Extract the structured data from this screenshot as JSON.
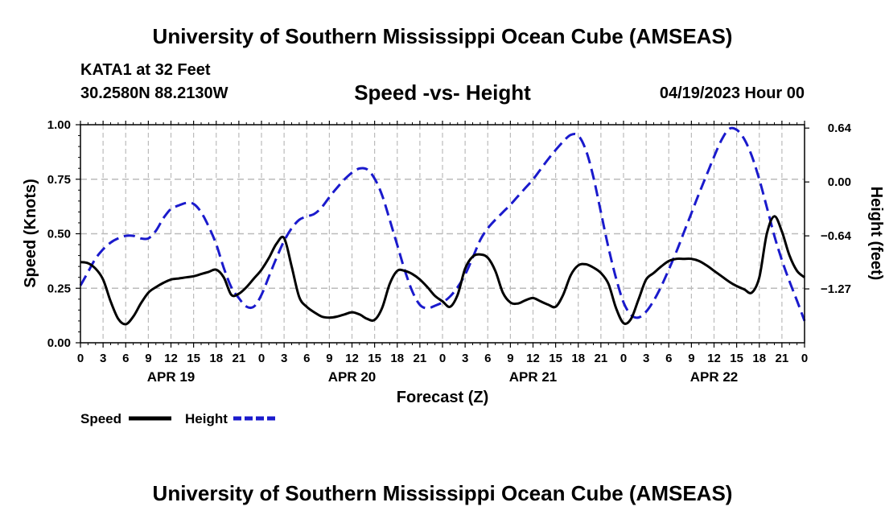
{
  "header": {
    "title": "University of Southern Mississippi Ocean Cube (AMSEAS)",
    "station": "KATA1 at 32 Feet",
    "coords": "30.2580N  88.2130W",
    "subtitle": "Speed -vs- Height",
    "datetime": "04/19/2023 Hour 00"
  },
  "footer": {
    "title": "University of Southern Mississippi Ocean Cube (AMSEAS)"
  },
  "chart_data": {
    "type": "line",
    "title": "Speed -vs- Height",
    "xlabel": "Forecast (Z)",
    "ylabel": "Speed (Knots)",
    "y2label": "Height (feet)",
    "grid": true,
    "xlim": [
      0,
      96
    ],
    "ylim": [
      0,
      1.0
    ],
    "y2lim": [
      -1.91,
      0.68
    ],
    "x_tick_hours": [
      0,
      3,
      6,
      9,
      12,
      15,
      18,
      21,
      24,
      27,
      30,
      33,
      36,
      39,
      42,
      45,
      48,
      51,
      54,
      57,
      60,
      63,
      66,
      69,
      72,
      75,
      78,
      81,
      84,
      87,
      90,
      93,
      96
    ],
    "x_tick_labels": [
      "0",
      "3",
      "6",
      "9",
      "12",
      "15",
      "18",
      "21",
      "0",
      "3",
      "6",
      "9",
      "12",
      "15",
      "18",
      "21",
      "0",
      "3",
      "6",
      "9",
      "12",
      "15",
      "18",
      "21",
      "0",
      "3",
      "6",
      "9",
      "12",
      "15",
      "18",
      "21",
      "0"
    ],
    "day_labels": [
      {
        "hour": 12,
        "label": "APR 19"
      },
      {
        "hour": 36,
        "label": "APR 20"
      },
      {
        "hour": 60,
        "label": "APR 21"
      },
      {
        "hour": 84,
        "label": "APR 22"
      }
    ],
    "y_ticks": [
      0.0,
      0.25,
      0.5,
      0.75,
      1.0
    ],
    "y_tick_labels": [
      "0.00",
      "0.25",
      "0.50",
      "0.75",
      "1.00"
    ],
    "y2_ticks": [
      0.64,
      0.0,
      -0.64,
      -1.27
    ],
    "y2_tick_labels": [
      "0.64",
      "0.00",
      "−0.64",
      "−1.27"
    ],
    "legend": [
      {
        "name": "Speed",
        "color": "#000000",
        "dash": "solid"
      },
      {
        "name": "Height",
        "color": "#1a1acc",
        "dash": "dashed"
      }
    ],
    "series": [
      {
        "name": "Speed",
        "axis": "left",
        "color": "#000000",
        "x": [
          0,
          1,
          2,
          3,
          4,
          5,
          6,
          7,
          8,
          9,
          10,
          11,
          12,
          13,
          14,
          15,
          16,
          17,
          18,
          19,
          20,
          21,
          22,
          23,
          24,
          25,
          26,
          27,
          28,
          29,
          30,
          31,
          32,
          33,
          34,
          35,
          36,
          37,
          38,
          39,
          40,
          41,
          42,
          43,
          44,
          45,
          46,
          47,
          48,
          49,
          50,
          51,
          52,
          53,
          54,
          55,
          56,
          57,
          58,
          59,
          60,
          61,
          62,
          63,
          64,
          65,
          66,
          67,
          68,
          69,
          70,
          71,
          72,
          73,
          74,
          75,
          76,
          77,
          78,
          79,
          80,
          81,
          82,
          83,
          84,
          85,
          86,
          87,
          88,
          89,
          90,
          91,
          92,
          93,
          94,
          95,
          96
        ],
        "values": [
          0.37,
          0.365,
          0.34,
          0.29,
          0.19,
          0.11,
          0.085,
          0.12,
          0.18,
          0.23,
          0.255,
          0.275,
          0.29,
          0.295,
          0.3,
          0.305,
          0.315,
          0.325,
          0.335,
          0.3,
          0.22,
          0.225,
          0.255,
          0.295,
          0.335,
          0.39,
          0.455,
          0.48,
          0.35,
          0.21,
          0.165,
          0.14,
          0.12,
          0.115,
          0.12,
          0.13,
          0.14,
          0.13,
          0.11,
          0.105,
          0.16,
          0.27,
          0.33,
          0.33,
          0.315,
          0.29,
          0.255,
          0.215,
          0.19,
          0.165,
          0.22,
          0.34,
          0.395,
          0.405,
          0.39,
          0.33,
          0.23,
          0.185,
          0.18,
          0.195,
          0.205,
          0.19,
          0.175,
          0.165,
          0.22,
          0.31,
          0.355,
          0.36,
          0.345,
          0.32,
          0.27,
          0.16,
          0.09,
          0.11,
          0.2,
          0.29,
          0.32,
          0.35,
          0.375,
          0.385,
          0.385,
          0.385,
          0.375,
          0.355,
          0.33,
          0.305,
          0.28,
          0.26,
          0.245,
          0.23,
          0.3,
          0.5,
          0.58,
          0.51,
          0.4,
          0.33,
          0.3
        ]
      },
      {
        "name": "Height",
        "axis": "right",
        "color": "#1a1acc",
        "x": [
          0,
          1,
          2,
          3,
          4,
          5,
          6,
          7,
          8,
          9,
          10,
          11,
          12,
          13,
          14,
          15,
          16,
          17,
          18,
          19,
          20,
          21,
          22,
          23,
          24,
          25,
          26,
          27,
          28,
          29,
          30,
          31,
          32,
          33,
          34,
          35,
          36,
          37,
          38,
          39,
          40,
          41,
          42,
          43,
          44,
          45,
          46,
          47,
          48,
          49,
          50,
          51,
          52,
          53,
          54,
          55,
          56,
          57,
          58,
          59,
          60,
          61,
          62,
          63,
          64,
          65,
          66,
          67,
          68,
          69,
          70,
          71,
          72,
          73,
          74,
          75,
          76,
          77,
          78,
          79,
          80,
          81,
          82,
          83,
          84,
          85,
          86,
          87,
          88,
          89,
          90,
          91,
          92,
          93,
          94,
          95,
          96
        ],
        "values": [
          -1.23,
          -1.07,
          -0.91,
          -0.8,
          -0.72,
          -0.67,
          -0.64,
          -0.64,
          -0.67,
          -0.67,
          -0.58,
          -0.43,
          -0.32,
          -0.28,
          -0.25,
          -0.26,
          -0.36,
          -0.53,
          -0.74,
          -1.02,
          -1.25,
          -1.38,
          -1.48,
          -1.48,
          -1.34,
          -1.12,
          -0.9,
          -0.7,
          -0.55,
          -0.45,
          -0.41,
          -0.38,
          -0.3,
          -0.18,
          -0.07,
          0.03,
          0.11,
          0.16,
          0.15,
          0.04,
          -0.16,
          -0.45,
          -0.75,
          -1.05,
          -1.3,
          -1.46,
          -1.5,
          -1.47,
          -1.43,
          -1.36,
          -1.25,
          -1.1,
          -0.9,
          -0.69,
          -0.55,
          -0.45,
          -0.36,
          -0.27,
          -0.17,
          -0.07,
          0.03,
          0.15,
          0.27,
          0.38,
          0.48,
          0.56,
          0.55,
          0.38,
          0.06,
          -0.36,
          -0.78,
          -1.14,
          -1.43,
          -1.58,
          -1.61,
          -1.54,
          -1.41,
          -1.24,
          -1.04,
          -0.83,
          -0.6,
          -0.37,
          -0.14,
          0.08,
          0.3,
          0.5,
          0.63,
          0.62,
          0.51,
          0.31,
          0.03,
          -0.3,
          -0.64,
          -0.93,
          -1.18,
          -1.41,
          -1.65
        ]
      }
    ]
  }
}
